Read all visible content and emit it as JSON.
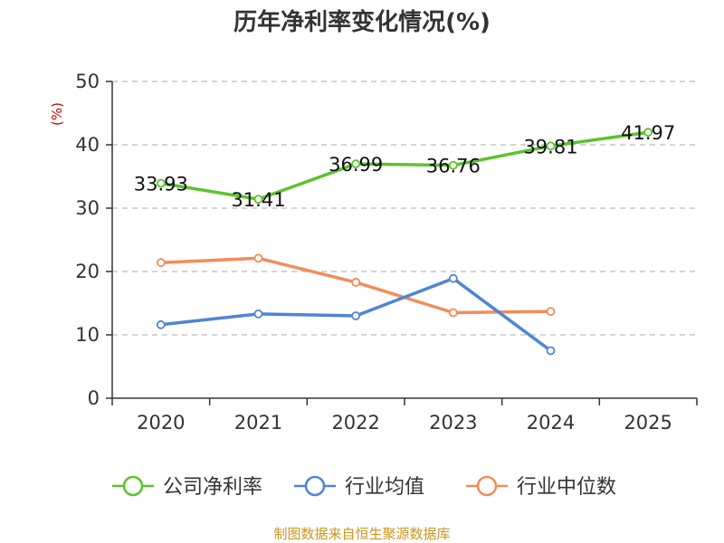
{
  "chart_data": {
    "type": "line",
    "title": "历年净利率变化情况(%)",
    "ylabel": "(%)",
    "xlabel": "",
    "categories": [
      "2020",
      "2021",
      "2022",
      "2023",
      "2024",
      "2025"
    ],
    "ylim": [
      0,
      50
    ],
    "yticks": [
      0,
      10,
      20,
      30,
      40,
      50
    ],
    "grid": true,
    "legend_position": "bottom",
    "series": [
      {
        "name": "公司净利率",
        "color": "#5cc22f",
        "values": [
          33.93,
          31.41,
          36.99,
          36.76,
          39.81,
          41.97
        ],
        "labels": [
          "33.93",
          "31.41",
          "36.99",
          "36.76",
          "39.81",
          "41.97"
        ]
      },
      {
        "name": "行业均值",
        "color": "#4f84d6",
        "values": [
          11.6,
          13.3,
          13.0,
          18.9,
          7.5,
          null
        ],
        "labels": []
      },
      {
        "name": "行业中位数",
        "color": "#f28c5b",
        "values": [
          21.4,
          22.1,
          18.3,
          13.5,
          13.7,
          null
        ],
        "labels": []
      }
    ],
    "source": "制图数据来自恒生聚源数据库"
  }
}
